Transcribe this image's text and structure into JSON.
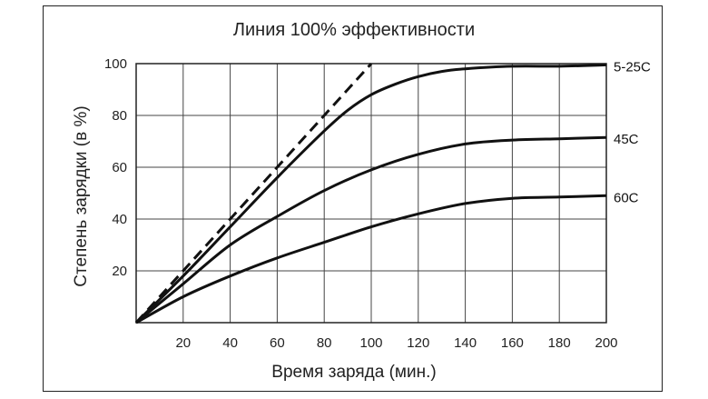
{
  "chart_data": {
    "type": "line",
    "title": "Линия 100% эффективности",
    "xlabel": "Время заряда (мин.)",
    "ylabel": "Степень зарядки  (в %)",
    "xlim": [
      0,
      200
    ],
    "ylim": [
      0,
      100
    ],
    "x_ticks": [
      "20",
      "40",
      "60",
      "80",
      "100",
      "120",
      "140",
      "160",
      "180",
      "200"
    ],
    "y_ticks": [
      "20",
      "40",
      "60",
      "80",
      "100"
    ],
    "grid": true,
    "reference_line": {
      "points": [
        [
          0,
          0
        ],
        [
          100,
          100
        ]
      ],
      "style": "dashed"
    },
    "series": [
      {
        "name": "5-25C",
        "x": [
          0,
          20,
          40,
          60,
          80,
          90,
          100,
          110,
          120,
          130,
          140,
          160,
          180,
          200
        ],
        "y": [
          0,
          18,
          37,
          56,
          74,
          82,
          88,
          92,
          95,
          97,
          98,
          99,
          99,
          99.5
        ]
      },
      {
        "name": "45C",
        "x": [
          0,
          20,
          40,
          60,
          80,
          100,
          120,
          140,
          160,
          180,
          200
        ],
        "y": [
          0,
          15,
          30,
          41,
          51,
          59,
          65,
          69,
          70.5,
          71,
          71.5
        ]
      },
      {
        "name": "60C",
        "x": [
          0,
          20,
          40,
          60,
          80,
          100,
          120,
          140,
          160,
          180,
          200
        ],
        "y": [
          0,
          10,
          18,
          25,
          31,
          37,
          42,
          46,
          48,
          48.5,
          49
        ]
      }
    ]
  }
}
